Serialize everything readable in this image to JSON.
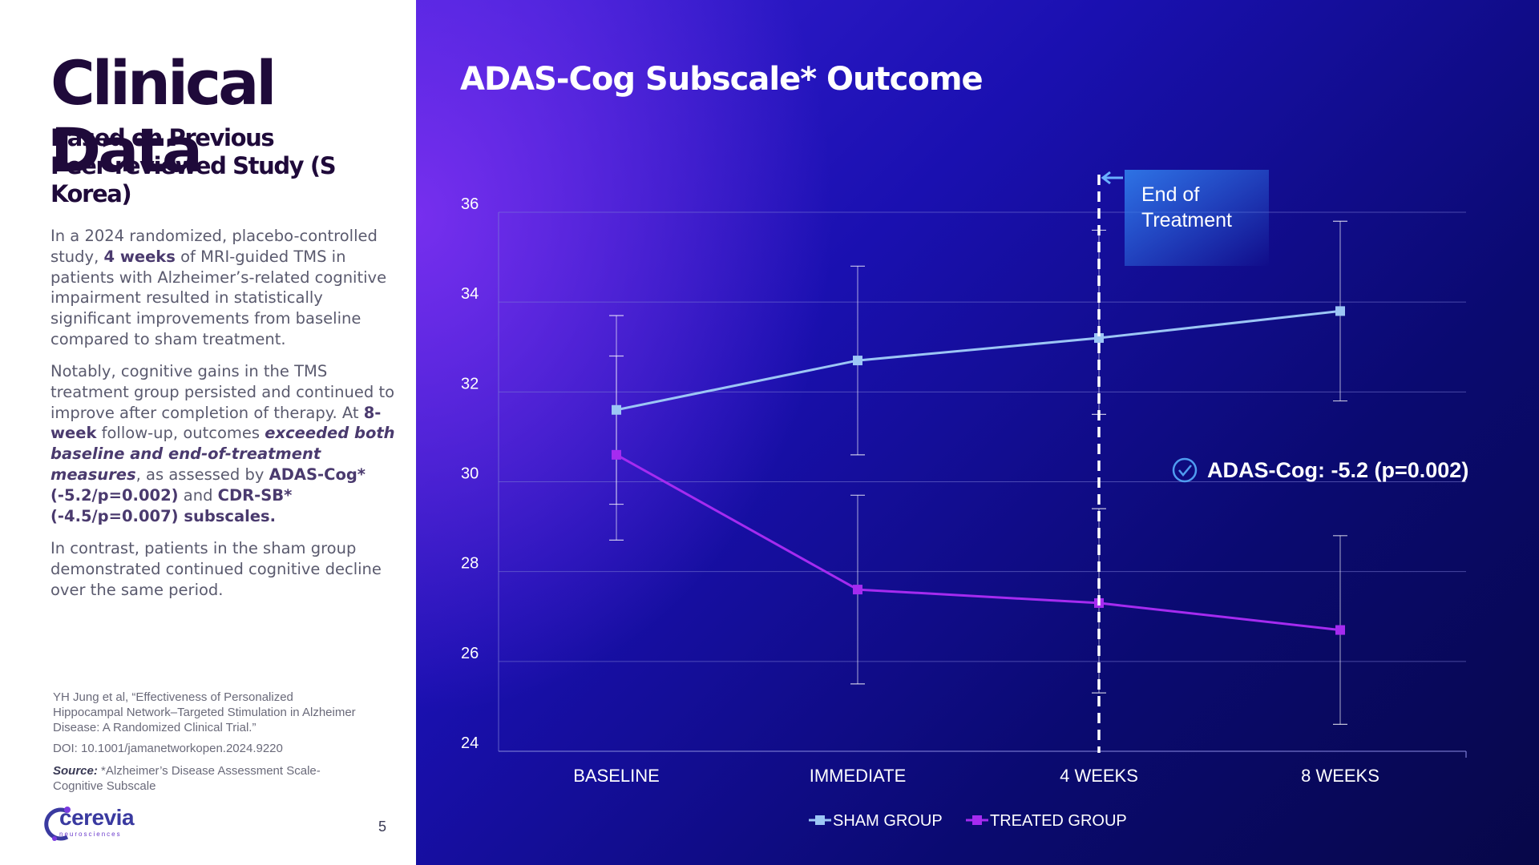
{
  "left": {
    "title": "Clinical Data",
    "subtitle_line1": "Based on Previous",
    "subtitle_line2": "Peer-reviewed Study (S Korea)",
    "p1": {
      "a": "In a 2024 randomized, placebo-controlled study, ",
      "b": "4 weeks",
      "c": " of MRI-guided TMS in patients with Alzheimer’s-related cognitive impairment resulted in statistically significant improvements from baseline compared to sham treatment."
    },
    "p2": {
      "a": "Notably, cognitive gains in the TMS treatment group persisted and continued to improve after completion of therapy. At ",
      "b": "8-week",
      "c": " follow-up, outcomes ",
      "d": "exceeded both baseline and end-of-treatment measures",
      "e": ", as assessed by ",
      "f": "ADAS-Cog* (-5.2/p=0.002)",
      "g": " and ",
      "h": "CDR-SB* (-4.5/p=0.007) subscales."
    },
    "p3": "In contrast, patients in the sham group demonstrated continued cognitive decline over the same period.",
    "citation": "YH Jung et al, “Effectiveness of Personalized Hippocampal Network–Targeted Stimulation in Alzheimer Disease: A Randomized Clinical Trial.”",
    "doi": "DOI: 10.1001/jamanetworkopen.2024.9220",
    "source_label": "Source:",
    "source_text": " *Alzheimer’s Disease Assessment Scale-Cognitive Subscale",
    "logo_name": "cerevia",
    "logo_sub": "neurosciences",
    "page_number": "5"
  },
  "colors": {
    "sham": "#9cc6f5",
    "treated": "#a52bf0",
    "grid": "#7e7ed6",
    "text": "#ffffff",
    "marker_blue": "#4f9cf0"
  },
  "chart_data": {
    "type": "line",
    "title": "ADAS-Cog Subscale* Outcome",
    "categories": [
      "BASELINE",
      "IMMEDIATE",
      "4 WEEKS",
      "8 WEEKS"
    ],
    "ylim": [
      24,
      36
    ],
    "yticks": [
      24,
      26,
      28,
      30,
      32,
      34,
      36
    ],
    "grid": true,
    "legend_position": "bottom-center",
    "series": [
      {
        "name": "SHAM GROUP",
        "values": [
          31.6,
          32.7,
          33.2,
          33.8
        ],
        "error_low": [
          28.7,
          30.6,
          31.5,
          31.8
        ],
        "error_high": [
          33.7,
          34.8,
          35.6,
          35.8
        ]
      },
      {
        "name": "TREATED GROUP",
        "values": [
          30.6,
          27.6,
          27.3,
          26.7
        ],
        "error_low": [
          29.5,
          25.5,
          25.3,
          24.6
        ],
        "error_high": [
          32.8,
          29.7,
          29.4,
          28.8
        ]
      }
    ],
    "marker": {
      "category": "4 WEEKS",
      "label_line1": "End of",
      "label_line2": "Treatment"
    },
    "annotation": "ADAS-Cog: -5.2 (p=0.002)"
  }
}
